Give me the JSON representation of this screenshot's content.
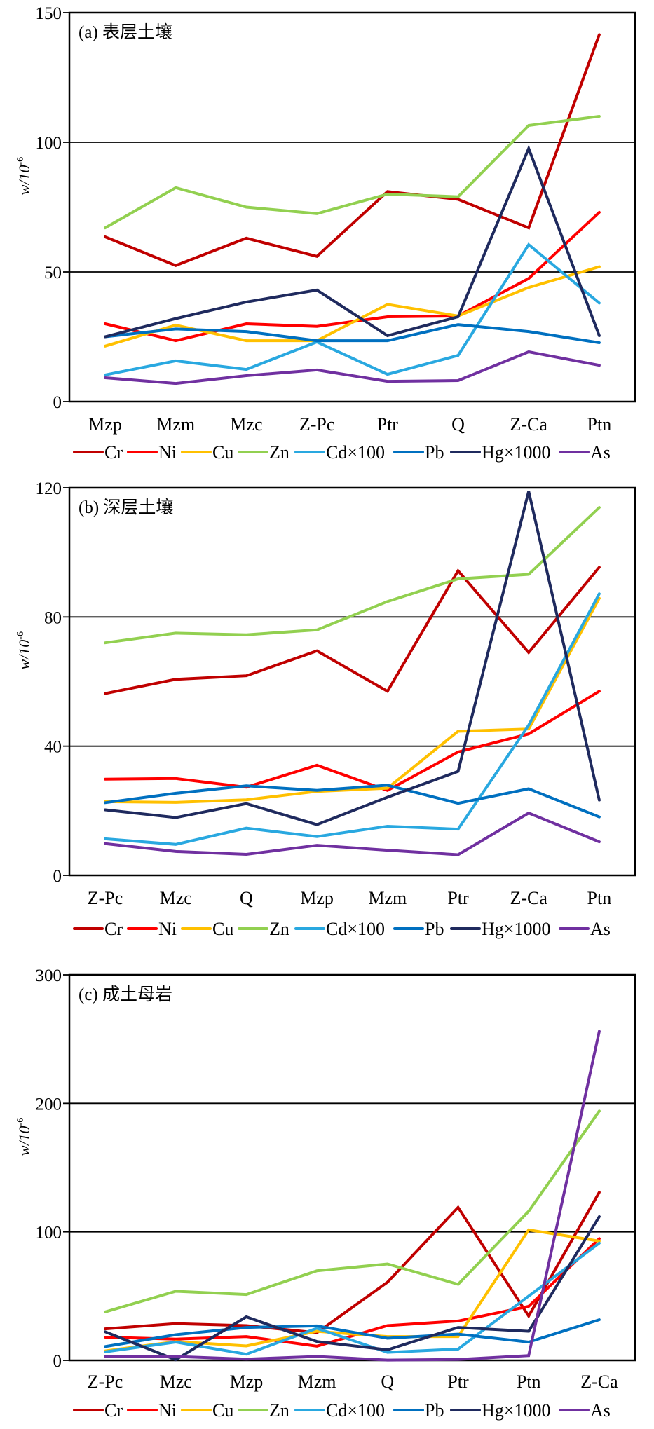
{
  "chart_data": [
    {
      "type": "line",
      "title": "(a) 表层土壤",
      "xlabel": "",
      "ylabel": "w/10⁻⁶",
      "ylabel_main": "w/10",
      "ylabel_exp": "-6",
      "ylim": [
        0,
        150
      ],
      "yticks": [
        0,
        50,
        100,
        150
      ],
      "gridlines": [
        50,
        100
      ],
      "grid": true,
      "legend": "bottom",
      "categories": [
        "Mzp",
        "Mzm",
        "Mzc",
        "Z-Pc",
        "Ptr",
        "Q",
        "Z-Ca",
        "Ptn"
      ],
      "series": [
        {
          "name": "Cr",
          "color": "#C00000",
          "values": [
            63.5,
            52.5,
            63,
            56,
            81,
            78,
            67,
            141.5
          ]
        },
        {
          "name": "Ni",
          "color": "#FF0000",
          "values": [
            30,
            23.5,
            30,
            29,
            32.7,
            33,
            47.5,
            73
          ]
        },
        {
          "name": "Cu",
          "color": "#FFC000",
          "values": [
            21.4,
            29.5,
            23.5,
            23.5,
            37.5,
            33,
            44,
            52
          ]
        },
        {
          "name": "Zn",
          "color": "#92D050",
          "values": [
            67,
            82.5,
            75,
            72.5,
            80,
            79,
            106.5,
            110
          ]
        },
        {
          "name": "Cd×100",
          "color": "#29A8E0",
          "values": [
            10.3,
            15.7,
            12.4,
            23,
            10.5,
            17.8,
            60.5,
            38
          ]
        },
        {
          "name": "Pb",
          "color": "#0070C0",
          "values": [
            25,
            28,
            27,
            23.5,
            23.5,
            29.7,
            27,
            22.7
          ]
        },
        {
          "name": "Hg×1000",
          "color": "#1F2A5E",
          "values": [
            25,
            32,
            38.4,
            43,
            25.4,
            32.7,
            97.6,
            25.4
          ]
        },
        {
          "name": "As",
          "color": "#7030A0",
          "values": [
            9.2,
            7,
            10,
            12.2,
            7.8,
            8.1,
            19.2,
            14
          ]
        }
      ]
    },
    {
      "type": "line",
      "title": "(b) 深层土壤",
      "xlabel": "",
      "ylabel": "w/10⁻⁶",
      "ylabel_main": "w/10",
      "ylabel_exp": "-6",
      "ylim": [
        0,
        120
      ],
      "yticks": [
        0,
        40,
        80,
        120
      ],
      "gridlines": [
        40,
        80
      ],
      "grid": true,
      "legend": "bottom",
      "categories": [
        "Z-Pc",
        "Mzc",
        "Q",
        "Mzp",
        "Mzm",
        "Ptr",
        "Z-Ca",
        "Ptn"
      ],
      "series": [
        {
          "name": "Cr",
          "color": "#C00000",
          "values": [
            56.3,
            60.7,
            61.8,
            69.5,
            57,
            94.3,
            69,
            95.4
          ]
        },
        {
          "name": "Ni",
          "color": "#FF0000",
          "values": [
            29.8,
            30,
            27.3,
            34.1,
            26.3,
            38.2,
            43.8,
            57
          ]
        },
        {
          "name": "Cu",
          "color": "#FFC000",
          "values": [
            22.8,
            22.6,
            23.4,
            26,
            27,
            44.6,
            45.3,
            85.8
          ]
        },
        {
          "name": "Zn",
          "color": "#92D050",
          "values": [
            72,
            75,
            74.5,
            76,
            84.8,
            91.8,
            93.2,
            113.9
          ]
        },
        {
          "name": "Cd×100",
          "color": "#29A8E0",
          "values": [
            11.3,
            9.6,
            14.6,
            12,
            15.2,
            14.3,
            46.5,
            87.2
          ]
        },
        {
          "name": "Pb",
          "color": "#0070C0",
          "values": [
            22.5,
            25.4,
            27.7,
            26.3,
            27.9,
            22.3,
            26.8,
            18.1
          ]
        },
        {
          "name": "Hg×1000",
          "color": "#1F2A5E",
          "values": [
            20.3,
            17.9,
            22.2,
            15.7,
            24.2,
            32.2,
            118.9,
            23.3
          ]
        },
        {
          "name": "As",
          "color": "#7030A0",
          "values": [
            9.8,
            7.4,
            6.5,
            9.3,
            7.8,
            6.4,
            19.3,
            10.4
          ]
        }
      ]
    },
    {
      "type": "line",
      "title": "(c) 成土母岩",
      "xlabel": "",
      "ylabel": "w/10⁻⁶",
      "ylabel_main": "w/10",
      "ylabel_exp": "-6",
      "ylim": [
        0,
        300
      ],
      "yticks": [
        0,
        100,
        200,
        300
      ],
      "gridlines": [
        100,
        200
      ],
      "grid": true,
      "legend": "bottom",
      "categories": [
        "Z-Pc",
        "Mzc",
        "Mzp",
        "Mzm",
        "Q",
        "Ptr",
        "Ptn",
        "Z-Ca"
      ],
      "series": [
        {
          "name": "Cr",
          "color": "#C00000",
          "values": [
            24.5,
            28.6,
            27,
            21.5,
            60.8,
            119,
            34.5,
            130.8
          ]
        },
        {
          "name": "Ni",
          "color": "#FF0000",
          "values": [
            18,
            16.5,
            18.5,
            11,
            27,
            30.6,
            42,
            94.7
          ]
        },
        {
          "name": "Cu",
          "color": "#FFC000",
          "values": [
            7.3,
            14.6,
            11.2,
            22.6,
            18.5,
            18.5,
            101.5,
            92.8
          ]
        },
        {
          "name": "Zn",
          "color": "#92D050",
          "values": [
            37.7,
            53.7,
            51.2,
            69.7,
            75,
            59.2,
            116,
            194
          ]
        },
        {
          "name": "Cd×100",
          "color": "#29A8E0",
          "values": [
            6.6,
            14.2,
            4.8,
            24.9,
            6.2,
            8.7,
            50,
            91.2
          ]
        },
        {
          "name": "Pb",
          "color": "#0070C0",
          "values": [
            10.7,
            19.9,
            25.6,
            26.8,
            17.2,
            20.4,
            14.2,
            31.6
          ]
        },
        {
          "name": "Hg×1000",
          "color": "#1F2A5E",
          "values": [
            22.2,
            0.5,
            33.8,
            14.6,
            8.2,
            25.6,
            22.6,
            111.8
          ]
        },
        {
          "name": "As",
          "color": "#7030A0",
          "values": [
            3,
            3,
            0.9,
            3,
            0.2,
            0.7,
            3.7,
            256
          ]
        }
      ]
    }
  ]
}
